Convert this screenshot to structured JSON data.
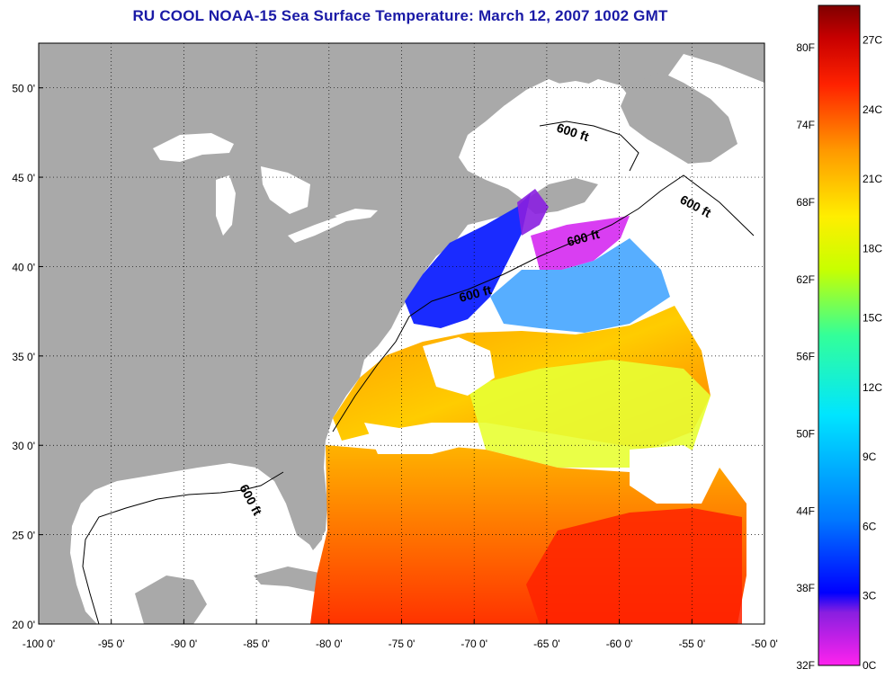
{
  "title": "RU COOL  NOAA-15  Sea Surface Temperature:  March 12, 2007 1002 GMT",
  "map": {
    "lon_ticks": [
      "-100 0'",
      "-95 0'",
      "-90 0'",
      "-85 0'",
      "-80 0'",
      "-75 0'",
      "-70 0'",
      "-65 0'",
      "-60 0'",
      "-55 0'",
      "-50 0'"
    ],
    "lat_ticks": [
      "50 0'",
      "45 0'",
      "40 0'",
      "35 0'",
      "30 0'",
      "25 0'",
      "20 0'"
    ],
    "lon_range": [
      -100,
      -50
    ],
    "lat_range": [
      20,
      52.5
    ],
    "grid": true,
    "land_color": "#a9a9a9",
    "depth_labels": [
      "600 ft",
      "600 ft",
      "600 ft",
      "600 ft",
      "600 ft"
    ]
  },
  "colorbar": {
    "fahrenheit_labels": [
      "80F",
      "74F",
      "68F",
      "62F",
      "56F",
      "50F",
      "44F",
      "38F",
      "32F"
    ],
    "celsius_labels": [
      "27C",
      "24C",
      "21C",
      "18C",
      "15C",
      "12C",
      "9C",
      "6C",
      "3C",
      "0C"
    ],
    "range_c": [
      0,
      28.5
    ],
    "colors": [
      "#ff22ee",
      "#8a1fe0",
      "#0000ff",
      "#0077ff",
      "#00e5ff",
      "#33ff99",
      "#c8ff00",
      "#ffee00",
      "#ff9900",
      "#ff2200",
      "#c80000",
      "#7f0000"
    ]
  }
}
